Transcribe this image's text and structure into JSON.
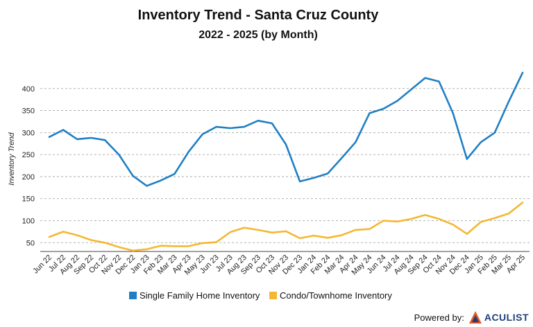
{
  "chart_data": {
    "type": "line",
    "title": "Inventory Trend - Santa Cruz County",
    "subtitle": "2022 - 2025 (by Month)",
    "xlabel": "",
    "ylabel": "Inventory Trend",
    "ylim": [
      30,
      450
    ],
    "yticks": [
      50,
      100,
      150,
      200,
      250,
      300,
      350,
      400
    ],
    "grid": true,
    "legend_position": "bottom",
    "categories": [
      "Jun 22",
      "Jul 22",
      "Aug 22",
      "Sep 22",
      "Oct 22",
      "Nov 22",
      "Dec 22",
      "Jan 23",
      "Feb 23",
      "Mar 23",
      "Apr 23",
      "May 23",
      "Jun 23",
      "Jul 23",
      "Aug 23",
      "Sep 23",
      "Oct 23",
      "Nov 23",
      "Dec 23",
      "Jan 24",
      "Feb 24",
      "Mar 24",
      "Apr 24",
      "May 24",
      "Jun 24",
      "Jul 24",
      "Aug 24",
      "Sep 24",
      "Oct 24",
      "Nov 24",
      "Dec 24",
      "Jan 25",
      "Feb 25",
      "Mar 25",
      "Apr 25"
    ],
    "series": [
      {
        "name": "Single Family Home Inventory",
        "color": "#1f7fc4",
        "values": [
          290,
          306,
          285,
          288,
          283,
          250,
          202,
          179,
          191,
          206,
          256,
          296,
          313,
          310,
          313,
          327,
          321,
          273,
          189,
          197,
          207,
          242,
          278,
          344,
          354,
          372,
          398,
          424,
          416,
          344,
          240,
          278,
          300,
          370,
          436
        ]
      },
      {
        "name": "Condo/Townhome Inventory",
        "color": "#f5b731",
        "values": [
          63,
          75,
          67,
          56,
          50,
          40,
          32,
          35,
          43,
          42,
          42,
          49,
          51,
          74,
          84,
          79,
          73,
          76,
          60,
          66,
          61,
          67,
          79,
          81,
          100,
          98,
          104,
          113,
          104,
          91,
          70,
          97,
          106,
          116,
          141
        ]
      }
    ]
  },
  "footer": {
    "powered_by": "Powered by:",
    "brand": "ACULIST",
    "logo_icon": "aculist-logo-icon"
  }
}
